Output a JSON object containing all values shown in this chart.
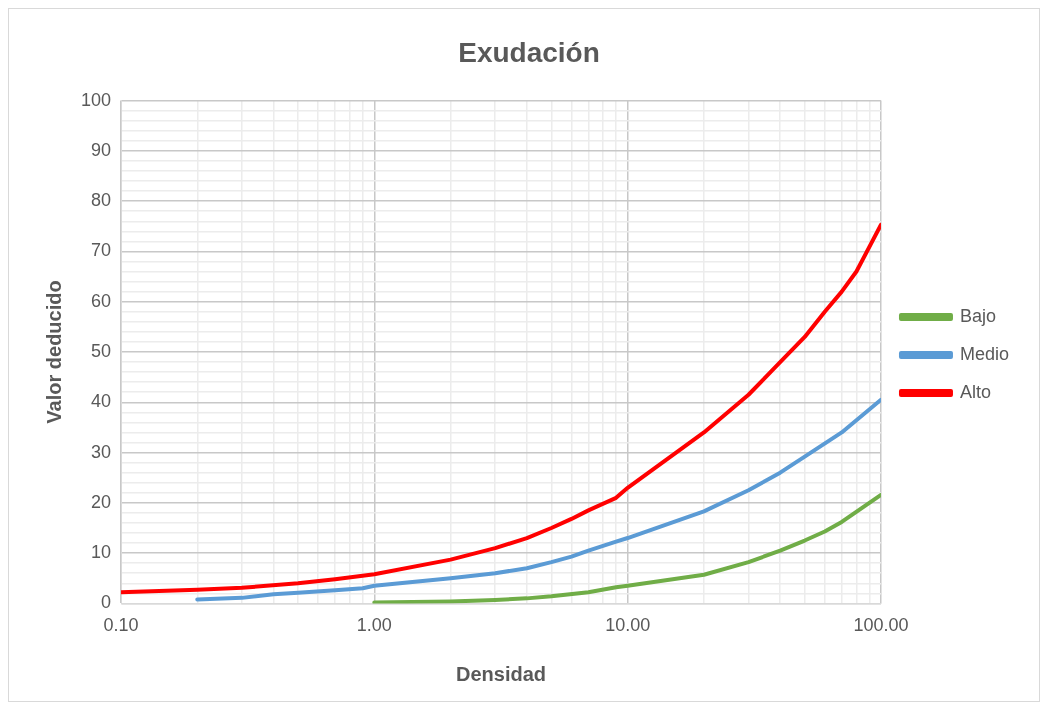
{
  "chart_data": {
    "type": "line",
    "title": "Exudación",
    "xlabel": "Densidad",
    "ylabel": "Valor deducido",
    "log": "x",
    "grid": true,
    "legend": "right",
    "marker": "none",
    "line_style": "solid",
    "xlim": [
      0.1,
      100
    ],
    "ylim": [
      0,
      100
    ],
    "xticks": [
      {
        "value": 0.1,
        "label": "0.10"
      },
      {
        "value": 0.2,
        "label": null
      },
      {
        "value": 0.3,
        "label": null
      },
      {
        "value": 0.4,
        "label": null
      },
      {
        "value": 0.5,
        "label": null
      },
      {
        "value": 0.6,
        "label": null
      },
      {
        "value": 0.7,
        "label": null
      },
      {
        "value": 0.8,
        "label": null
      },
      {
        "value": 0.9,
        "label": null
      },
      {
        "value": 1,
        "label": "1.00"
      },
      {
        "value": 2,
        "label": null
      },
      {
        "value": 3,
        "label": null
      },
      {
        "value": 4,
        "label": null
      },
      {
        "value": 5,
        "label": null
      },
      {
        "value": 6,
        "label": null
      },
      {
        "value": 7,
        "label": null
      },
      {
        "value": 8,
        "label": null
      },
      {
        "value": 9,
        "label": null
      },
      {
        "value": 10,
        "label": "10.00"
      },
      {
        "value": 20,
        "label": null
      },
      {
        "value": 30,
        "label": null
      },
      {
        "value": 40,
        "label": null
      },
      {
        "value": 50,
        "label": null
      },
      {
        "value": 60,
        "label": null
      },
      {
        "value": 70,
        "label": null
      },
      {
        "value": 80,
        "label": null
      },
      {
        "value": 90,
        "label": null
      },
      {
        "value": 100,
        "label": "100.00"
      }
    ],
    "yticks": [
      0,
      {
        "value": 2,
        "label": null
      },
      {
        "value": 4,
        "label": null
      },
      {
        "value": 6,
        "label": null
      },
      {
        "value": 8,
        "label": null
      },
      10,
      {
        "value": 12,
        "label": null
      },
      {
        "value": 14,
        "label": null
      },
      {
        "value": 16,
        "label": null
      },
      {
        "value": 18,
        "label": null
      },
      20,
      {
        "value": 22,
        "label": null
      },
      {
        "value": 24,
        "label": null
      },
      {
        "value": 26,
        "label": null
      },
      {
        "value": 28,
        "label": null
      },
      30,
      {
        "value": 32,
        "label": null
      },
      {
        "value": 34,
        "label": null
      },
      {
        "value": 36,
        "label": null
      },
      {
        "value": 38,
        "label": null
      },
      40,
      {
        "value": 42,
        "label": null
      },
      {
        "value": 44,
        "label": null
      },
      {
        "value": 46,
        "label": null
      },
      {
        "value": 48,
        "label": null
      },
      50,
      {
        "value": 52,
        "label": null
      },
      {
        "value": 54,
        "label": null
      },
      {
        "value": 56,
        "label": null
      },
      {
        "value": 58,
        "label": null
      },
      60,
      {
        "value": 62,
        "label": null
      },
      {
        "value": 64,
        "label": null
      },
      {
        "value": 66,
        "label": null
      },
      {
        "value": 68,
        "label": null
      },
      70,
      {
        "value": 72,
        "label": null
      },
      {
        "value": 74,
        "label": null
      },
      {
        "value": 76,
        "label": null
      },
      {
        "value": 78,
        "label": null
      },
      80,
      {
        "value": 82,
        "label": null
      },
      {
        "value": 84,
        "label": null
      },
      {
        "value": 86,
        "label": null
      },
      {
        "value": 88,
        "label": null
      },
      90,
      {
        "value": 92,
        "label": null
      },
      {
        "value": 94,
        "label": null
      },
      {
        "value": 96,
        "label": null
      },
      {
        "value": 98,
        "label": null
      },
      100
    ],
    "series": [
      {
        "name": "Bajo",
        "color": "#70ad47",
        "x": [
          1,
          2,
          3,
          4,
          5,
          7,
          9,
          10,
          20,
          30,
          40,
          50,
          60,
          70,
          100
        ],
        "values": [
          0.2,
          0.4,
          0.7,
          1,
          1.4,
          2.2,
          3.2,
          3.5,
          5.7,
          8.2,
          10.5,
          12.5,
          14.3,
          16.2,
          21.6
        ]
      },
      {
        "name": "Medio",
        "color": "#5b9bd5",
        "x": [
          0.2,
          0.3,
          0.4,
          0.5,
          0.7,
          0.9,
          1,
          2,
          3,
          4,
          5,
          6,
          7,
          9,
          10,
          20,
          30,
          40,
          50,
          70,
          100
        ],
        "values": [
          0.8,
          1.1,
          1.8,
          2.1,
          2.6,
          3,
          3.5,
          5,
          6,
          7,
          8.2,
          9.3,
          10.5,
          12.3,
          13,
          18.3,
          22.5,
          26,
          29.2,
          34,
          40.5
        ]
      },
      {
        "name": "Alto",
        "color": "#ff0000",
        "x": [
          0.1,
          0.2,
          0.3,
          0.5,
          0.7,
          1,
          2,
          3,
          4,
          5,
          6,
          7,
          9,
          10,
          20,
          30,
          40,
          50,
          60,
          70,
          80,
          100
        ],
        "values": [
          2.2,
          2.7,
          3.1,
          4,
          4.8,
          5.8,
          8.7,
          11,
          13,
          15,
          16.8,
          18.5,
          21,
          23,
          34,
          41.5,
          48,
          53,
          58,
          62,
          66,
          75.3
        ]
      }
    ]
  }
}
